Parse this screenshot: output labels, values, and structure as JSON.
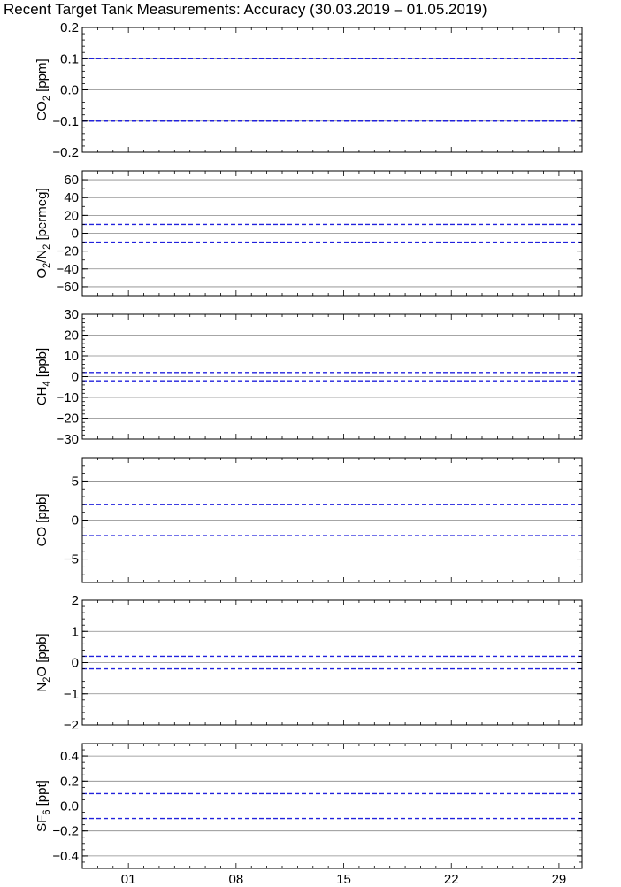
{
  "chart_data": {
    "title": "Recent Target Tank Measurements: Accuracy (30.03.2019 – 01.05.2019)",
    "x": {
      "ticks": [
        "01",
        "08",
        "15",
        "22",
        "29"
      ],
      "tick_days": [
        3,
        10,
        17,
        24,
        31
      ],
      "range": [
        0,
        32.5
      ]
    },
    "panels": [
      {
        "type": "line",
        "ylabel": {
          "main": "CO",
          "sub": "2",
          "rest": " [ppm]"
        },
        "ylim": [
          -0.2,
          0.2
        ],
        "yticks": [
          0.2,
          0.1,
          0.0,
          -0.1,
          -0.2
        ],
        "ytick_labels": [
          "0.2",
          "0.1",
          "0.0",
          "−0.1",
          "−0.2"
        ],
        "minor_step": 0.02,
        "grid": [
          0.1,
          0.0,
          -0.1
        ],
        "accuracy_limits": [
          0.1,
          -0.1
        ],
        "series": []
      },
      {
        "type": "line",
        "ylabel": {
          "main": "O",
          "sub": "2",
          "rest": "/N",
          "sub2": "2",
          "rest2": " [permeg]"
        },
        "ylim": [
          -70,
          70
        ],
        "yticks": [
          60,
          40,
          20,
          0,
          -20,
          -40,
          -60
        ],
        "ytick_labels": [
          "60",
          "40",
          "20",
          "0",
          "−20",
          "−40",
          "−60"
        ],
        "minor_step": 10,
        "grid": [
          60,
          40,
          20,
          0,
          -20,
          -40,
          -60
        ],
        "accuracy_limits": [
          10,
          -10
        ],
        "series": []
      },
      {
        "type": "line",
        "ylabel": {
          "main": "CH",
          "sub": "4",
          "rest": " [ppb]"
        },
        "ylim": [
          -30,
          30
        ],
        "yticks": [
          30,
          20,
          10,
          0,
          -10,
          -20,
          -30
        ],
        "ytick_labels": [
          "30",
          "20",
          "10",
          "0",
          "−10",
          "−20",
          "−30"
        ],
        "minor_step": 2,
        "grid": [
          20,
          10,
          0,
          -10,
          -20
        ],
        "accuracy_limits": [
          2,
          -2
        ],
        "series": []
      },
      {
        "type": "line",
        "ylabel": {
          "main": "CO",
          "rest": " [ppb]"
        },
        "ylim": [
          -8,
          8
        ],
        "yticks": [
          5,
          0,
          -5
        ],
        "ytick_labels": [
          "5",
          "0",
          "−5"
        ],
        "minor_step": 1,
        "grid": [
          5,
          0,
          -5
        ],
        "accuracy_limits": [
          2,
          -2
        ],
        "series": []
      },
      {
        "type": "line",
        "ylabel": {
          "main": "N",
          "sub": "2",
          "rest": "O [ppb]"
        },
        "ylim": [
          -2,
          2
        ],
        "yticks": [
          2,
          1,
          0,
          -1,
          -2
        ],
        "ytick_labels": [
          "2",
          "1",
          "0",
          "−1",
          "−2"
        ],
        "minor_step": 0.2,
        "grid": [
          1,
          0,
          -1
        ],
        "accuracy_limits": [
          0.2,
          -0.2
        ],
        "series": []
      },
      {
        "type": "line",
        "ylabel": {
          "main": "SF",
          "sub": "6",
          "rest": " [ppt]"
        },
        "ylim": [
          -0.5,
          0.5
        ],
        "yticks": [
          0.4,
          0.2,
          0.0,
          -0.2,
          -0.4
        ],
        "ytick_labels": [
          "0.4",
          "0.2",
          "0.0",
          "−0.2",
          "−0.4"
        ],
        "minor_step": 0.05,
        "grid": [
          0.4,
          0.2,
          0.0,
          -0.2,
          -0.4
        ],
        "accuracy_limits": [
          0.1,
          -0.1
        ],
        "series": []
      }
    ],
    "colors": {
      "limit_line": "#2222dd",
      "grid": "#888888",
      "axes": "#000000"
    }
  }
}
